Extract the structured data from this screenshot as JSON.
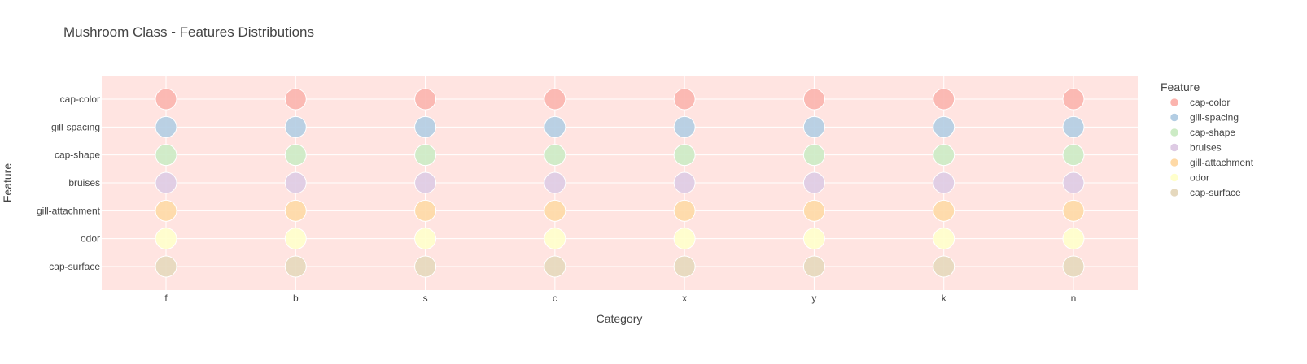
{
  "chart_data": {
    "type": "scatter",
    "title": "Mushroom Class - Features Distributions",
    "xlabel": "Category",
    "ylabel": "Feature",
    "categories": [
      "f",
      "b",
      "s",
      "c",
      "x",
      "y",
      "k",
      "n"
    ],
    "features": [
      "cap-color",
      "gill-spacing",
      "cap-shape",
      "bruises",
      "gill-attachment",
      "odor",
      "cap-surface"
    ],
    "legend": {
      "title": "Feature",
      "placement": "right"
    },
    "grid": true,
    "plot_background": "#ffe4e1",
    "series": [
      {
        "name": "cap-color",
        "color": "#fbb4ae",
        "values": [
          1,
          1,
          1,
          1,
          1,
          1,
          1,
          1
        ]
      },
      {
        "name": "gill-spacing",
        "color": "#b3cde3",
        "values": [
          1,
          1,
          1,
          1,
          1,
          1,
          1,
          1
        ]
      },
      {
        "name": "cap-shape",
        "color": "#ccebc5",
        "values": [
          1,
          1,
          1,
          1,
          1,
          1,
          1,
          1
        ]
      },
      {
        "name": "bruises",
        "color": "#decbe4",
        "values": [
          1,
          1,
          1,
          1,
          1,
          1,
          1,
          1
        ]
      },
      {
        "name": "gill-attachment",
        "color": "#fed9a6",
        "values": [
          1,
          1,
          1,
          1,
          1,
          1,
          1,
          1
        ]
      },
      {
        "name": "odor",
        "color": "#ffffcc",
        "values": [
          1,
          1,
          1,
          1,
          1,
          1,
          1,
          1
        ]
      },
      {
        "name": "cap-surface",
        "color": "#e5d8bd",
        "values": [
          1,
          1,
          1,
          1,
          1,
          1,
          1,
          1
        ]
      }
    ]
  }
}
